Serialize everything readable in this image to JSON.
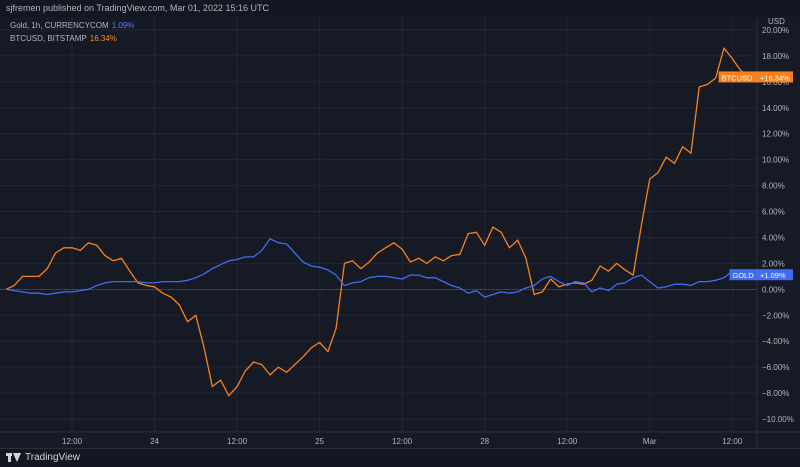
{
  "header": {
    "publisher_text": "sjfremen published on TradingView.com, Mar 01, 2022 15:16 UTC"
  },
  "legend": {
    "gold_name": "Gold, 1h, CURRENCYCOM",
    "gold_value": "1.09%",
    "btc_name": "BTCUSD, BITSTAMP",
    "btc_value": "16.34%"
  },
  "footer": {
    "brand": "TradingView"
  },
  "colors": {
    "gold": "#3f6cf0",
    "btc": "#f7821b",
    "background": "#161a25",
    "grid": "#222633"
  },
  "chart_data": {
    "type": "line",
    "y_unit_label": "USD",
    "ylim": [
      -11,
      21
    ],
    "y_ticks": [
      -10,
      -8,
      -6,
      -4,
      -2,
      0,
      2,
      4,
      6,
      8,
      10,
      12,
      14,
      16,
      18,
      20
    ],
    "y_tick_labels": [
      "−10.00%",
      "−8.00%",
      "−6.00%",
      "−4.00%",
      "−2.00%",
      "0.00%",
      "2.00%",
      "4.00%",
      "6.00%",
      "8.00%",
      "10.00%",
      "12.00%",
      "14.00%",
      "16.00%",
      "18.00%",
      "20.00%"
    ],
    "xlim": [
      0,
      91
    ],
    "x_ticks": [
      {
        "t": 8,
        "label": "12:00"
      },
      {
        "t": 18,
        "label": "24"
      },
      {
        "t": 28,
        "label": "12:00"
      },
      {
        "t": 38,
        "label": "25"
      },
      {
        "t": 48,
        "label": "12:00"
      },
      {
        "t": 58,
        "label": "28"
      },
      {
        "t": 68,
        "label": "12:00"
      },
      {
        "t": 78,
        "label": "Mar"
      },
      {
        "t": 88,
        "label": "12:00"
      }
    ],
    "series": [
      {
        "name": "BTCUSD",
        "badge": "BTCUSD",
        "badge_value": "+16.34%",
        "last": 16.34,
        "values": [
          0.0,
          0.3,
          1.0,
          1.0,
          1.0,
          1.6,
          2.8,
          3.2,
          3.2,
          3.0,
          3.6,
          3.4,
          2.6,
          2.2,
          2.4,
          1.4,
          0.5,
          0.3,
          0.2,
          -0.3,
          -0.6,
          -1.2,
          -2.5,
          -2.0,
          -4.5,
          -7.5,
          -7.0,
          -8.2,
          -7.5,
          -6.3,
          -5.6,
          -5.8,
          -6.6,
          -6.0,
          -6.4,
          -5.8,
          -5.2,
          -4.5,
          -4.1,
          -4.8,
          -3.0,
          2.0,
          2.2,
          1.6,
          2.1,
          2.8,
          3.2,
          3.6,
          3.1,
          2.1,
          2.4,
          2.0,
          2.5,
          2.2,
          2.6,
          2.7,
          4.3,
          4.4,
          3.4,
          4.8,
          4.4,
          3.2,
          3.8,
          2.4,
          -0.4,
          -0.2,
          0.8,
          0.2,
          0.4,
          0.5,
          0.4,
          0.7,
          1.8,
          1.4,
          2.0,
          1.5,
          1.1,
          5.0,
          8.5,
          9.0,
          10.2,
          9.7,
          11.0,
          10.5,
          15.6,
          15.8,
          16.3,
          18.6,
          17.8,
          16.9,
          16.34
        ]
      },
      {
        "name": "Gold",
        "badge": "GOLD",
        "badge_value": "+1.09%",
        "last": 1.09,
        "values": [
          0.0,
          -0.1,
          -0.2,
          -0.3,
          -0.3,
          -0.4,
          -0.3,
          -0.2,
          -0.2,
          -0.1,
          0.0,
          0.3,
          0.5,
          0.6,
          0.6,
          0.6,
          0.6,
          0.5,
          0.5,
          0.6,
          0.6,
          0.6,
          0.7,
          0.9,
          1.2,
          1.6,
          1.9,
          2.2,
          2.3,
          2.5,
          2.5,
          3.0,
          3.9,
          3.6,
          3.5,
          2.8,
          2.1,
          1.8,
          1.7,
          1.5,
          1.1,
          0.3,
          0.5,
          0.6,
          0.9,
          1.0,
          1.0,
          0.9,
          0.8,
          1.1,
          1.1,
          0.9,
          0.9,
          0.6,
          0.3,
          0.1,
          -0.3,
          -0.1,
          -0.6,
          -0.4,
          -0.2,
          -0.3,
          -0.2,
          0.1,
          0.3,
          0.8,
          1.0,
          0.6,
          0.3,
          0.6,
          0.5,
          -0.2,
          0.1,
          -0.1,
          0.4,
          0.5,
          0.9,
          1.1,
          0.6,
          0.1,
          0.2,
          0.4,
          0.4,
          0.3,
          0.6,
          0.6,
          0.7,
          0.9,
          1.4,
          1.2,
          1.09
        ]
      }
    ]
  }
}
